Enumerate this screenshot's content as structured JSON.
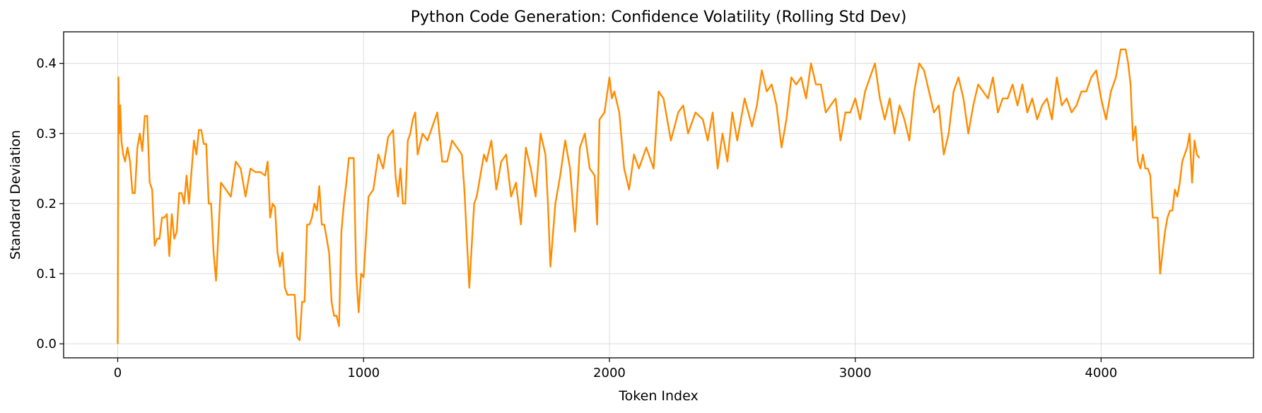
{
  "chart_data": {
    "type": "line",
    "title": "Python Code Generation: Confidence Volatility (Rolling Std Dev)",
    "xlabel": "Token Index",
    "ylabel": "Standard Deviation",
    "xlim": [
      -220,
      4620
    ],
    "ylim": [
      -0.02,
      0.445
    ],
    "xticks": [
      0,
      1000,
      2000,
      3000,
      4000
    ],
    "yticks": [
      0.0,
      0.1,
      0.2,
      0.3,
      0.4
    ],
    "xtick_labels": [
      "0",
      "1000",
      "2000",
      "3000",
      "4000"
    ],
    "ytick_labels": [
      "0.0",
      "0.1",
      "0.2",
      "0.3",
      "0.4"
    ],
    "grid": true,
    "series": [
      {
        "color": "#ff8c00",
        "x": [
          0,
          3,
          6,
          10,
          15,
          22,
          30,
          40,
          50,
          60,
          70,
          80,
          90,
          100,
          110,
          120,
          130,
          140,
          150,
          160,
          170,
          180,
          190,
          200,
          210,
          220,
          230,
          240,
          250,
          260,
          270,
          280,
          290,
          300,
          310,
          320,
          330,
          340,
          350,
          360,
          370,
          380,
          390,
          400,
          420,
          440,
          460,
          480,
          500,
          520,
          540,
          560,
          580,
          600,
          610,
          620,
          630,
          640,
          650,
          660,
          670,
          680,
          690,
          700,
          710,
          720,
          730,
          740,
          750,
          760,
          770,
          780,
          790,
          800,
          810,
          820,
          830,
          840,
          850,
          860,
          870,
          880,
          890,
          900,
          910,
          920,
          930,
          940,
          950,
          960,
          970,
          980,
          990,
          1000,
          1020,
          1040,
          1060,
          1080,
          1100,
          1110,
          1120,
          1130,
          1140,
          1150,
          1160,
          1170,
          1180,
          1190,
          1200,
          1210,
          1220,
          1240,
          1260,
          1280,
          1300,
          1320,
          1340,
          1360,
          1380,
          1400,
          1410,
          1420,
          1430,
          1440,
          1450,
          1460,
          1470,
          1480,
          1490,
          1500,
          1520,
          1540,
          1560,
          1580,
          1600,
          1620,
          1640,
          1660,
          1680,
          1700,
          1720,
          1740,
          1750,
          1760,
          1780,
          1800,
          1820,
          1840,
          1860,
          1880,
          1900,
          1920,
          1940,
          1950,
          1960,
          1980,
          2000,
          2010,
          2020,
          2040,
          2060,
          2080,
          2100,
          2120,
          2150,
          2180,
          2200,
          2220,
          2250,
          2280,
          2300,
          2320,
          2350,
          2380,
          2400,
          2420,
          2440,
          2460,
          2480,
          2500,
          2520,
          2550,
          2580,
          2600,
          2620,
          2640,
          2660,
          2680,
          2700,
          2720,
          2740,
          2760,
          2780,
          2800,
          2820,
          2840,
          2860,
          2880,
          2900,
          2920,
          2940,
          2960,
          2980,
          3000,
          3020,
          3040,
          3060,
          3080,
          3100,
          3120,
          3140,
          3160,
          3180,
          3200,
          3220,
          3240,
          3260,
          3280,
          3300,
          3320,
          3340,
          3360,
          3380,
          3400,
          3420,
          3440,
          3460,
          3480,
          3500,
          3520,
          3540,
          3560,
          3580,
          3600,
          3620,
          3640,
          3660,
          3680,
          3700,
          3720,
          3740,
          3760,
          3780,
          3800,
          3820,
          3840,
          3860,
          3880,
          3900,
          3920,
          3940,
          3960,
          3980,
          4000,
          4020,
          4040,
          4060,
          4080,
          4100,
          4110,
          4120,
          4130,
          4140,
          4150,
          4160,
          4170,
          4180,
          4190,
          4200,
          4210,
          4220,
          4230,
          4240,
          4250,
          4260,
          4270,
          4280,
          4290,
          4300,
          4310,
          4320,
          4330,
          4340,
          4350,
          4360,
          4370,
          4380,
          4390,
          4400
        ],
        "y": [
          0.0,
          0.38,
          0.3,
          0.34,
          0.29,
          0.27,
          0.26,
          0.28,
          0.26,
          0.215,
          0.215,
          0.28,
          0.3,
          0.275,
          0.325,
          0.325,
          0.23,
          0.22,
          0.14,
          0.15,
          0.15,
          0.18,
          0.18,
          0.185,
          0.125,
          0.185,
          0.15,
          0.16,
          0.215,
          0.215,
          0.2,
          0.24,
          0.2,
          0.245,
          0.29,
          0.27,
          0.305,
          0.305,
          0.285,
          0.285,
          0.2,
          0.2,
          0.13,
          0.09,
          0.23,
          0.22,
          0.21,
          0.26,
          0.25,
          0.21,
          0.25,
          0.245,
          0.245,
          0.24,
          0.26,
          0.18,
          0.2,
          0.195,
          0.13,
          0.11,
          0.13,
          0.08,
          0.07,
          0.07,
          0.07,
          0.07,
          0.01,
          0.005,
          0.06,
          0.06,
          0.17,
          0.17,
          0.18,
          0.2,
          0.19,
          0.225,
          0.17,
          0.17,
          0.15,
          0.13,
          0.06,
          0.04,
          0.04,
          0.025,
          0.16,
          0.2,
          0.23,
          0.265,
          0.265,
          0.265,
          0.1,
          0.045,
          0.1,
          0.095,
          0.21,
          0.22,
          0.27,
          0.25,
          0.295,
          0.3,
          0.305,
          0.24,
          0.21,
          0.25,
          0.2,
          0.2,
          0.29,
          0.3,
          0.32,
          0.33,
          0.27,
          0.3,
          0.29,
          0.31,
          0.33,
          0.26,
          0.26,
          0.29,
          0.28,
          0.27,
          0.22,
          0.15,
          0.08,
          0.14,
          0.2,
          0.21,
          0.23,
          0.25,
          0.27,
          0.26,
          0.29,
          0.22,
          0.26,
          0.27,
          0.21,
          0.23,
          0.17,
          0.28,
          0.25,
          0.21,
          0.3,
          0.27,
          0.2,
          0.11,
          0.2,
          0.24,
          0.29,
          0.25,
          0.16,
          0.28,
          0.3,
          0.25,
          0.24,
          0.17,
          0.32,
          0.33,
          0.38,
          0.35,
          0.36,
          0.33,
          0.25,
          0.22,
          0.27,
          0.25,
          0.28,
          0.25,
          0.36,
          0.35,
          0.29,
          0.33,
          0.34,
          0.3,
          0.33,
          0.32,
          0.29,
          0.33,
          0.25,
          0.3,
          0.26,
          0.33,
          0.29,
          0.35,
          0.31,
          0.34,
          0.39,
          0.36,
          0.37,
          0.34,
          0.28,
          0.32,
          0.38,
          0.37,
          0.38,
          0.35,
          0.4,
          0.37,
          0.37,
          0.33,
          0.34,
          0.35,
          0.29,
          0.33,
          0.33,
          0.35,
          0.32,
          0.36,
          0.38,
          0.4,
          0.35,
          0.32,
          0.35,
          0.3,
          0.34,
          0.32,
          0.29,
          0.36,
          0.4,
          0.39,
          0.36,
          0.33,
          0.34,
          0.27,
          0.3,
          0.36,
          0.38,
          0.35,
          0.3,
          0.34,
          0.37,
          0.36,
          0.35,
          0.38,
          0.33,
          0.35,
          0.35,
          0.37,
          0.34,
          0.37,
          0.33,
          0.35,
          0.32,
          0.34,
          0.35,
          0.32,
          0.38,
          0.34,
          0.35,
          0.33,
          0.34,
          0.36,
          0.36,
          0.38,
          0.39,
          0.35,
          0.32,
          0.36,
          0.38,
          0.42,
          0.42,
          0.4,
          0.37,
          0.29,
          0.31,
          0.26,
          0.25,
          0.27,
          0.25,
          0.25,
          0.24,
          0.18,
          0.18,
          0.18,
          0.1,
          0.13,
          0.16,
          0.18,
          0.19,
          0.19,
          0.22,
          0.21,
          0.23,
          0.26,
          0.27,
          0.28,
          0.3,
          0.23,
          0.29,
          0.27,
          0.265
        ]
      }
    ]
  }
}
